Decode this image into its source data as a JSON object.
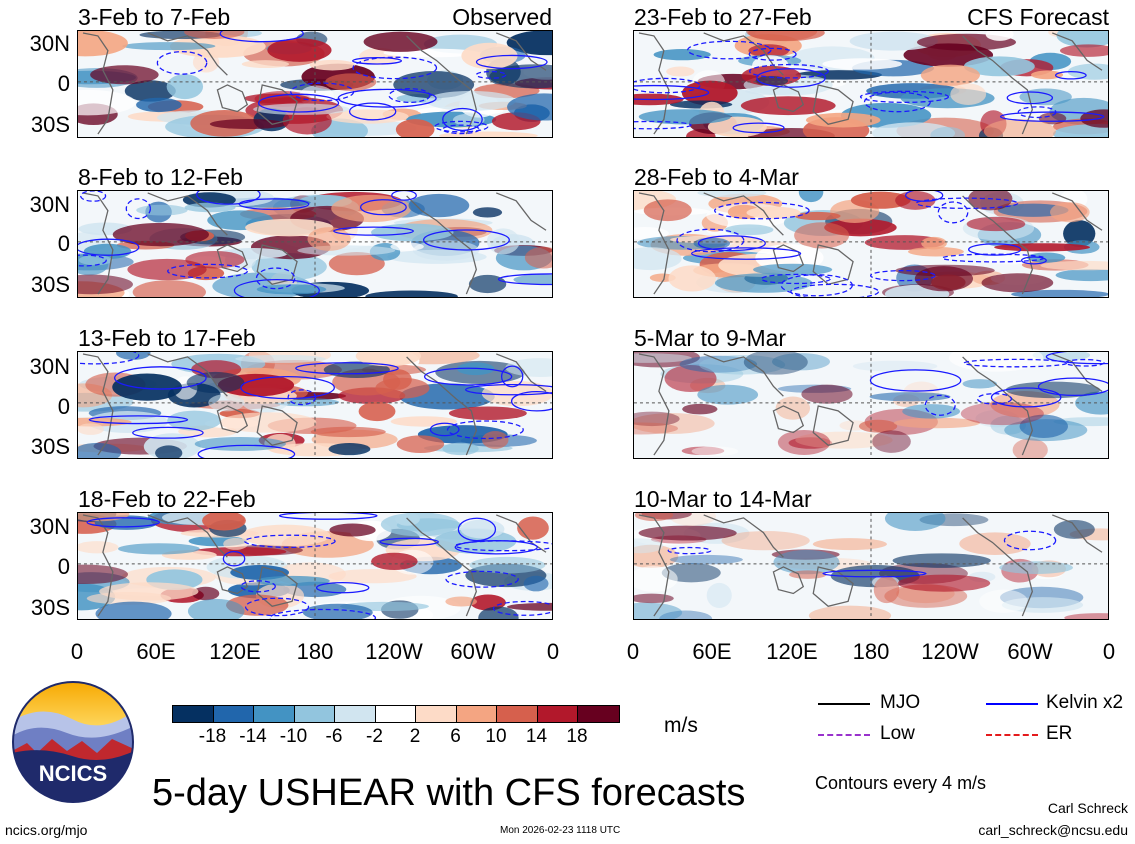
{
  "left_column": {
    "panels": [
      {
        "title": "3-Feb to 7-Feb",
        "label": "Observed"
      },
      {
        "title": "8-Feb to 12-Feb",
        "label": ""
      },
      {
        "title": "13-Feb to 17-Feb",
        "label": ""
      },
      {
        "title": "18-Feb to 22-Feb",
        "label": ""
      }
    ]
  },
  "right_column": {
    "panels": [
      {
        "title": "23-Feb to 27-Feb",
        "label": "CFS Forecast"
      },
      {
        "title": "28-Feb to 4-Mar",
        "label": ""
      },
      {
        "title": "5-Mar to 9-Mar",
        "label": ""
      },
      {
        "title": "10-Mar to 14-Mar",
        "label": ""
      }
    ]
  },
  "y_axis_labels": [
    "30N",
    "0",
    "30S"
  ],
  "x_axis_labels": [
    "0",
    "60E",
    "120E",
    "180",
    "120W",
    "60W",
    "0"
  ],
  "colorbar": {
    "colors": [
      "#053061",
      "#2166ac",
      "#4393c3",
      "#92c5de",
      "#d1e5f0",
      "#ffffff",
      "#fddbc7",
      "#f4a582",
      "#d6604d",
      "#b2182b",
      "#67001f"
    ],
    "ticks": [
      "-18",
      "-14",
      "-10",
      "-6",
      "-2",
      "2",
      "6",
      "10",
      "14",
      "18"
    ],
    "unit": "m/s"
  },
  "legend": {
    "items": [
      {
        "label": "MJO",
        "color": "#000000",
        "dashed": false
      },
      {
        "label": "Kelvin x2",
        "color": "#0000ff",
        "dashed": false
      },
      {
        "label": "Low",
        "color": "#9932cc",
        "dashed": true
      },
      {
        "label": "ER",
        "color": "#e41a1c",
        "dashed": true
      }
    ],
    "contour_note": "Contours every 4 m/s"
  },
  "logo": {
    "text": "NCICS"
  },
  "main_title": "5-day USHEAR with CFS forecasts",
  "footer": {
    "url": "ncics.org/mjo",
    "timestamp": "Mon 2026-02-23 1118 UTC",
    "author": "Carl Schreck",
    "email": "carl_schreck@ncsu.edu"
  }
}
